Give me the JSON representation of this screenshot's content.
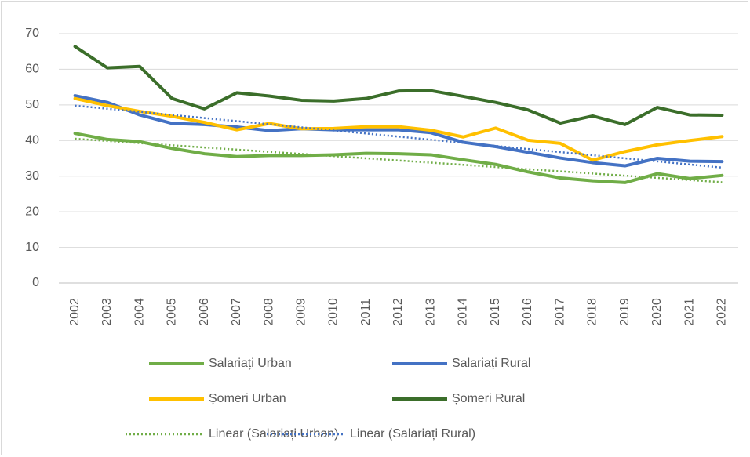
{
  "chart_data": {
    "type": "line",
    "categories": [
      "2002",
      "2003",
      "2004",
      "2005",
      "2006",
      "2007",
      "2008",
      "2009",
      "2010",
      "2011",
      "2012",
      "2013",
      "2014",
      "2015",
      "2016",
      "2017",
      "2018",
      "2019",
      "2020",
      "2021",
      "2022"
    ],
    "ylim": [
      0,
      70
    ],
    "yticks": [
      0,
      10,
      20,
      30,
      40,
      50,
      60,
      70
    ],
    "grid": true,
    "series": [
      {
        "name": "Salariați Urban",
        "color": "#70ad47",
        "style": "solid",
        "values": [
          42.0,
          40.3,
          39.7,
          37.8,
          36.3,
          35.5,
          35.8,
          35.8,
          36.0,
          36.4,
          36.3,
          36.0,
          34.6,
          33.3,
          31.2,
          29.5,
          28.7,
          28.2,
          30.7,
          29.3,
          30.2
        ]
      },
      {
        "name": "Salariați Rural",
        "color": "#4472c4",
        "style": "solid",
        "values": [
          52.6,
          50.7,
          47.2,
          44.8,
          44.5,
          43.8,
          42.8,
          43.3,
          43.0,
          43.0,
          43.0,
          42.2,
          39.5,
          38.3,
          36.7,
          35.1,
          33.8,
          32.9,
          35.0,
          34.2,
          34.1
        ]
      },
      {
        "name": "Șomeri Urban",
        "color": "#ffc000",
        "style": "solid",
        "values": [
          51.8,
          49.8,
          48.2,
          46.8,
          45.1,
          43.0,
          44.8,
          43.3,
          43.4,
          43.9,
          43.9,
          42.9,
          41.0,
          43.5,
          40.1,
          39.2,
          34.5,
          36.9,
          38.8,
          40.0,
          41.1
        ]
      },
      {
        "name": "Șomeri Rural",
        "color": "#3b6e2a",
        "style": "solid",
        "values": [
          66.4,
          60.4,
          60.8,
          51.8,
          48.9,
          53.4,
          52.5,
          51.3,
          51.1,
          51.8,
          53.9,
          54.0,
          52.4,
          50.7,
          48.6,
          44.9,
          46.9,
          44.5,
          49.3,
          47.2,
          47.1
        ]
      },
      {
        "name": "Linear (Salariați Urban)",
        "color": "#70ad47",
        "style": "dotted",
        "values": [
          40.5,
          39.89,
          39.28,
          38.67,
          38.06,
          37.45,
          36.84,
          36.23,
          35.62,
          35.01,
          34.4,
          33.79,
          33.18,
          32.57,
          31.96,
          31.35,
          30.74,
          30.13,
          29.52,
          28.91,
          28.3
        ]
      },
      {
        "name": "Linear (Salariați Rural)",
        "color": "#4472c4",
        "style": "dotted",
        "values": [
          49.8,
          48.93,
          48.06,
          47.19,
          46.32,
          45.45,
          44.58,
          43.71,
          42.84,
          41.97,
          41.1,
          40.23,
          39.36,
          38.49,
          37.62,
          36.75,
          35.88,
          35.01,
          34.14,
          33.27,
          32.4
        ]
      }
    ]
  }
}
